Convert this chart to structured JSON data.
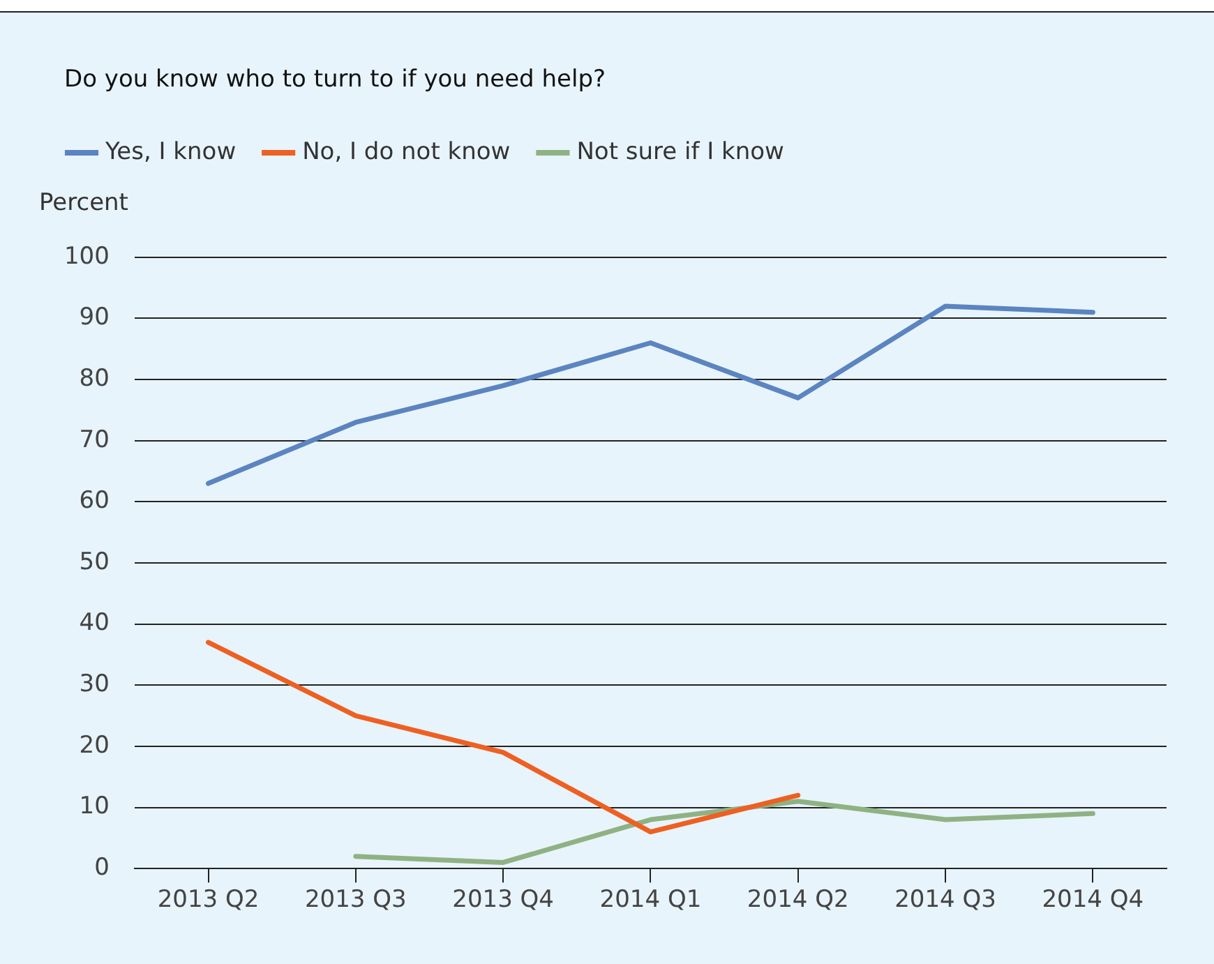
{
  "chart_data": {
    "type": "line",
    "title": "Do you know who to turn to if you need help?",
    "ylabel": "Percent",
    "categories": [
      "2013 Q2",
      "2013 Q3",
      "2013 Q4",
      "2014 Q1",
      "2014 Q2",
      "2014 Q3",
      "2014 Q4"
    ],
    "series": [
      {
        "name": "Yes, I know",
        "color": "#5b84c0",
        "values": [
          63,
          73,
          79,
          86,
          77,
          92,
          91
        ]
      },
      {
        "name": "No, I do not know",
        "color": "#ee6022",
        "values": [
          37,
          25,
          19,
          6,
          12,
          null,
          null
        ]
      },
      {
        "name": "Not sure if I know",
        "color": "#8fb283",
        "values": [
          null,
          2,
          1,
          8,
          11,
          8,
          9
        ]
      }
    ],
    "ylim": [
      0,
      100
    ],
    "yticks": [
      0,
      10,
      20,
      30,
      40,
      50,
      60,
      70,
      80,
      90,
      100
    ],
    "grid": "y",
    "legend": "top left",
    "marker": "none",
    "line_style": "solid"
  }
}
